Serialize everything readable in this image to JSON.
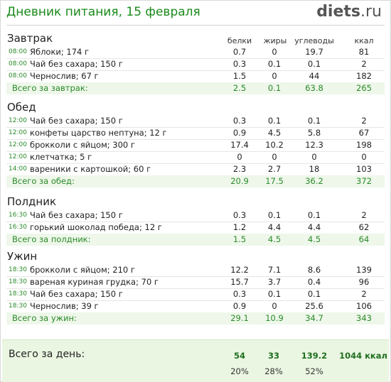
{
  "header": {
    "title": "Дневник питания, 15 февраля",
    "logo_main": "diets",
    "logo_tld": ".ru"
  },
  "columns": {
    "protein": "белки",
    "fat": "жиры",
    "carbs": "углеводы",
    "kcal": "ккал"
  },
  "sections": [
    {
      "title": "Завтрак",
      "items": [
        {
          "time": "08:00",
          "name": "Яблоки; 174 г",
          "protein": "0.7",
          "fat": "0",
          "carbs": "19.7",
          "kcal": "81"
        },
        {
          "time": "08:00",
          "name": "Чай без сахара; 150 г",
          "protein": "0.3",
          "fat": "0.1",
          "carbs": "0.1",
          "kcal": "2"
        },
        {
          "time": "08:00",
          "name": "Чернослив; 67 г",
          "protein": "1.5",
          "fat": "0",
          "carbs": "44",
          "kcal": "182"
        }
      ],
      "total": {
        "label": "Всего за завтрак:",
        "protein": "2.5",
        "fat": "0.1",
        "carbs": "63.8",
        "kcal": "265"
      }
    },
    {
      "title": "Обед",
      "items": [
        {
          "time": "12:00",
          "name": "Чай без сахара; 150 г",
          "protein": "0.3",
          "fat": "0.1",
          "carbs": "0.1",
          "kcal": "2"
        },
        {
          "time": "12:00",
          "name": "конфеты царство нептуна; 12 г",
          "protein": "0.9",
          "fat": "4.5",
          "carbs": "5.8",
          "kcal": "67"
        },
        {
          "time": "12:00",
          "name": "брокколи с яйцом; 300 г",
          "protein": "17.4",
          "fat": "10.2",
          "carbs": "12.3",
          "kcal": "198"
        },
        {
          "time": "12:00",
          "name": "клетчатка; 5 г",
          "protein": "0",
          "fat": "0",
          "carbs": "0",
          "kcal": "0"
        },
        {
          "time": "14:00",
          "name": "вареники с картошкой; 60 г",
          "protein": "2.3",
          "fat": "2.7",
          "carbs": "18",
          "kcal": "103"
        }
      ],
      "total": {
        "label": "Всего за обед:",
        "protein": "20.9",
        "fat": "17.5",
        "carbs": "36.2",
        "kcal": "372"
      }
    },
    {
      "title": "Полдник",
      "items": [
        {
          "time": "16:30",
          "name": "Чай без сахара; 150 г",
          "protein": "0.3",
          "fat": "0.1",
          "carbs": "0.1",
          "kcal": "2"
        },
        {
          "time": "16:30",
          "name": "горький шоколад победа; 12 г",
          "protein": "1.2",
          "fat": "4.4",
          "carbs": "4.4",
          "kcal": "62"
        }
      ],
      "total": {
        "label": "Всего за полдник:",
        "protein": "1.5",
        "fat": "4.5",
        "carbs": "4.5",
        "kcal": "64"
      }
    },
    {
      "title": "Ужин",
      "items": [
        {
          "time": "18:30",
          "name": "брокколи с яйцом; 210 г",
          "protein": "12.2",
          "fat": "7.1",
          "carbs": "8.6",
          "kcal": "139"
        },
        {
          "time": "18:30",
          "name": "вареная куриная грудка; 70 г",
          "protein": "15.7",
          "fat": "3.7",
          "carbs": "0.4",
          "kcal": "96"
        },
        {
          "time": "18:30",
          "name": "Чай без сахара; 150 г",
          "protein": "0.3",
          "fat": "0.1",
          "carbs": "0.1",
          "kcal": "2"
        },
        {
          "time": "18:30",
          "name": "Чернослив; 39 г",
          "protein": "0.9",
          "fat": "0",
          "carbs": "25.6",
          "kcal": "106"
        }
      ],
      "total": {
        "label": "Всего за ужин:",
        "protein": "29.1",
        "fat": "10.9",
        "carbs": "34.7",
        "kcal": "343"
      }
    }
  ],
  "day_total": {
    "label": "Всего за день:",
    "protein": "54",
    "fat": "33",
    "carbs": "139.2",
    "kcal": "1044 ккал",
    "protein_pct": "20%",
    "fat_pct": "28%",
    "carbs_pct": "52%"
  },
  "colors": {
    "accent": "#1a8a1a",
    "total_bg": "#eef7ea",
    "day_bg": "#eaf6e2"
  }
}
